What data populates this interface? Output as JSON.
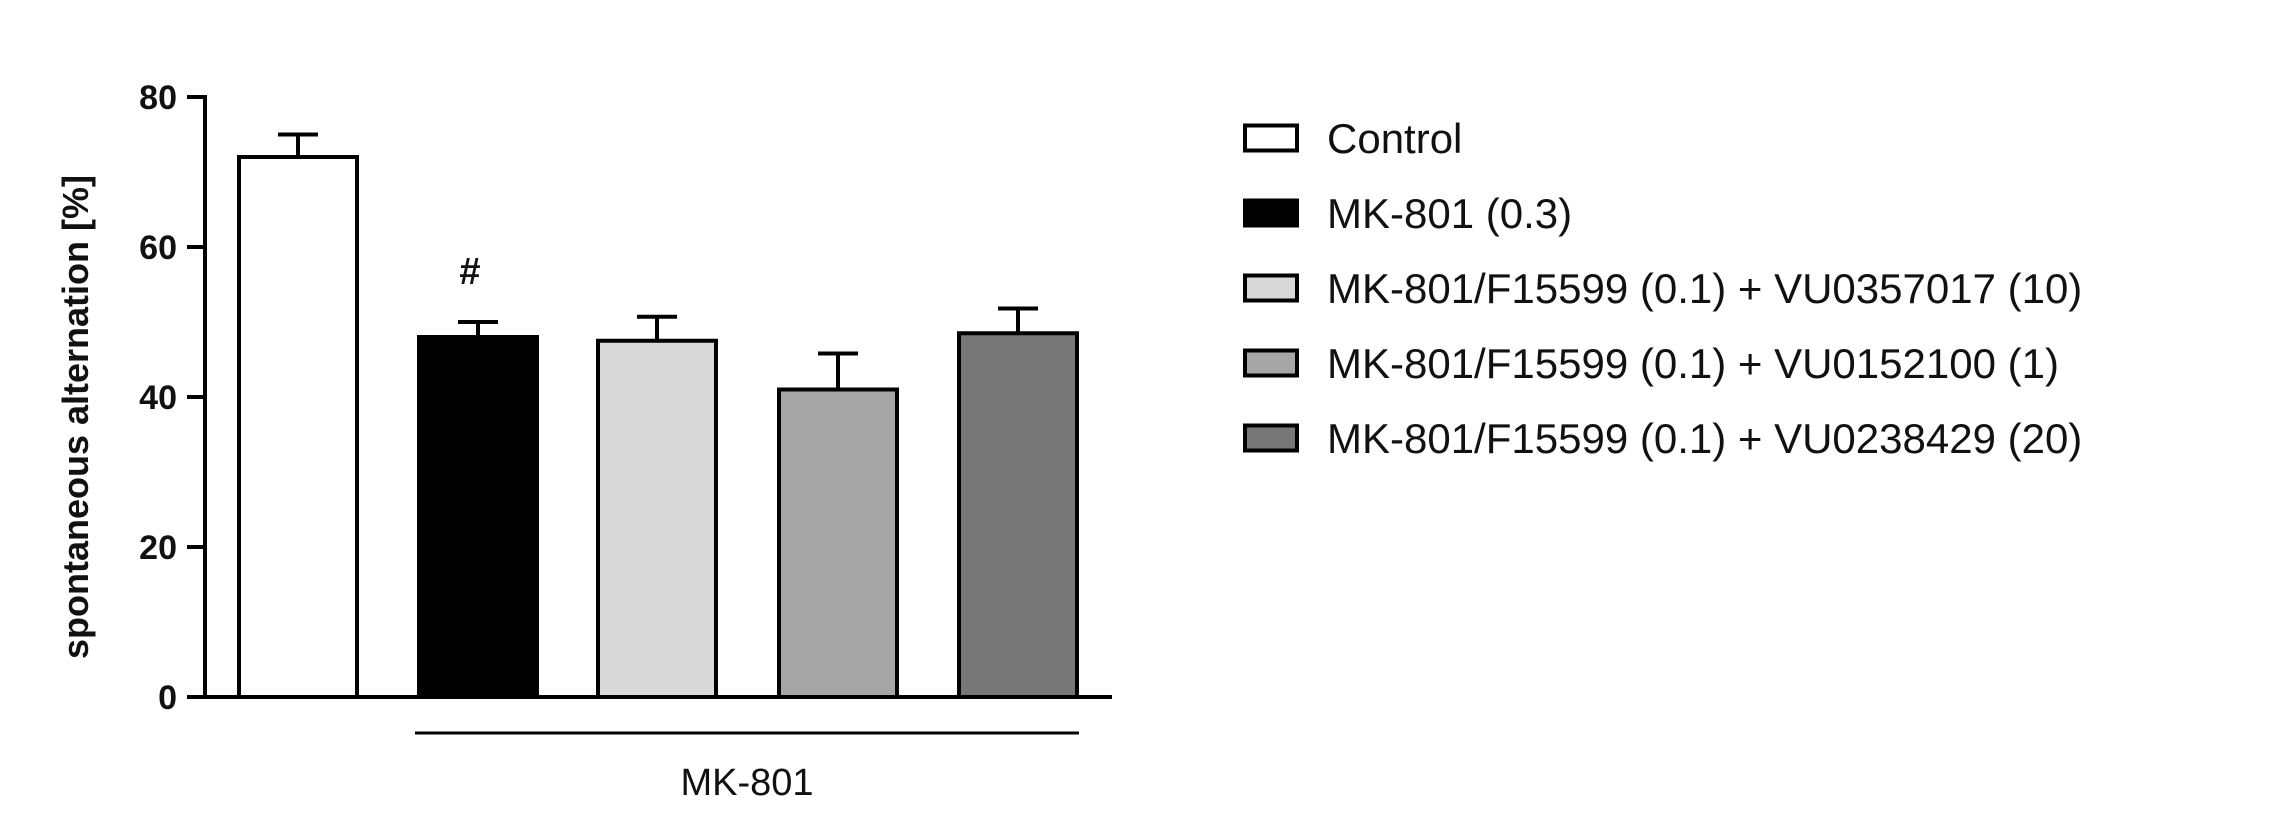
{
  "chart_data": {
    "type": "bar",
    "title": "",
    "xlabel": "",
    "ylabel": "spontaneous alternation [%]",
    "ylim": [
      0,
      80
    ],
    "yticks": [
      0,
      20,
      40,
      60,
      80
    ],
    "grid": false,
    "legend_position": "right",
    "categories": [
      "Control",
      "MK-801 (0.3)",
      "MK-801/F15599 (0.1) + VU0357017 (10)",
      "MK-801/F15599 (0.1) + VU0152100 (1)",
      "MK-801/F15599 (0.1) + VU0238429 (20)"
    ],
    "values": [
      72,
      48,
      47.5,
      41,
      48.5
    ],
    "errors": [
      3,
      2,
      3.2,
      4.8,
      3.3
    ],
    "colors": [
      "#ffffff",
      "#000000",
      "#d9d9d9",
      "#a6a6a6",
      "#777777"
    ],
    "annotations": [
      {
        "category_index": 1,
        "text": "#"
      }
    ],
    "group_label": {
      "text": "MK-801",
      "from_index": 1,
      "to_index": 4
    }
  }
}
